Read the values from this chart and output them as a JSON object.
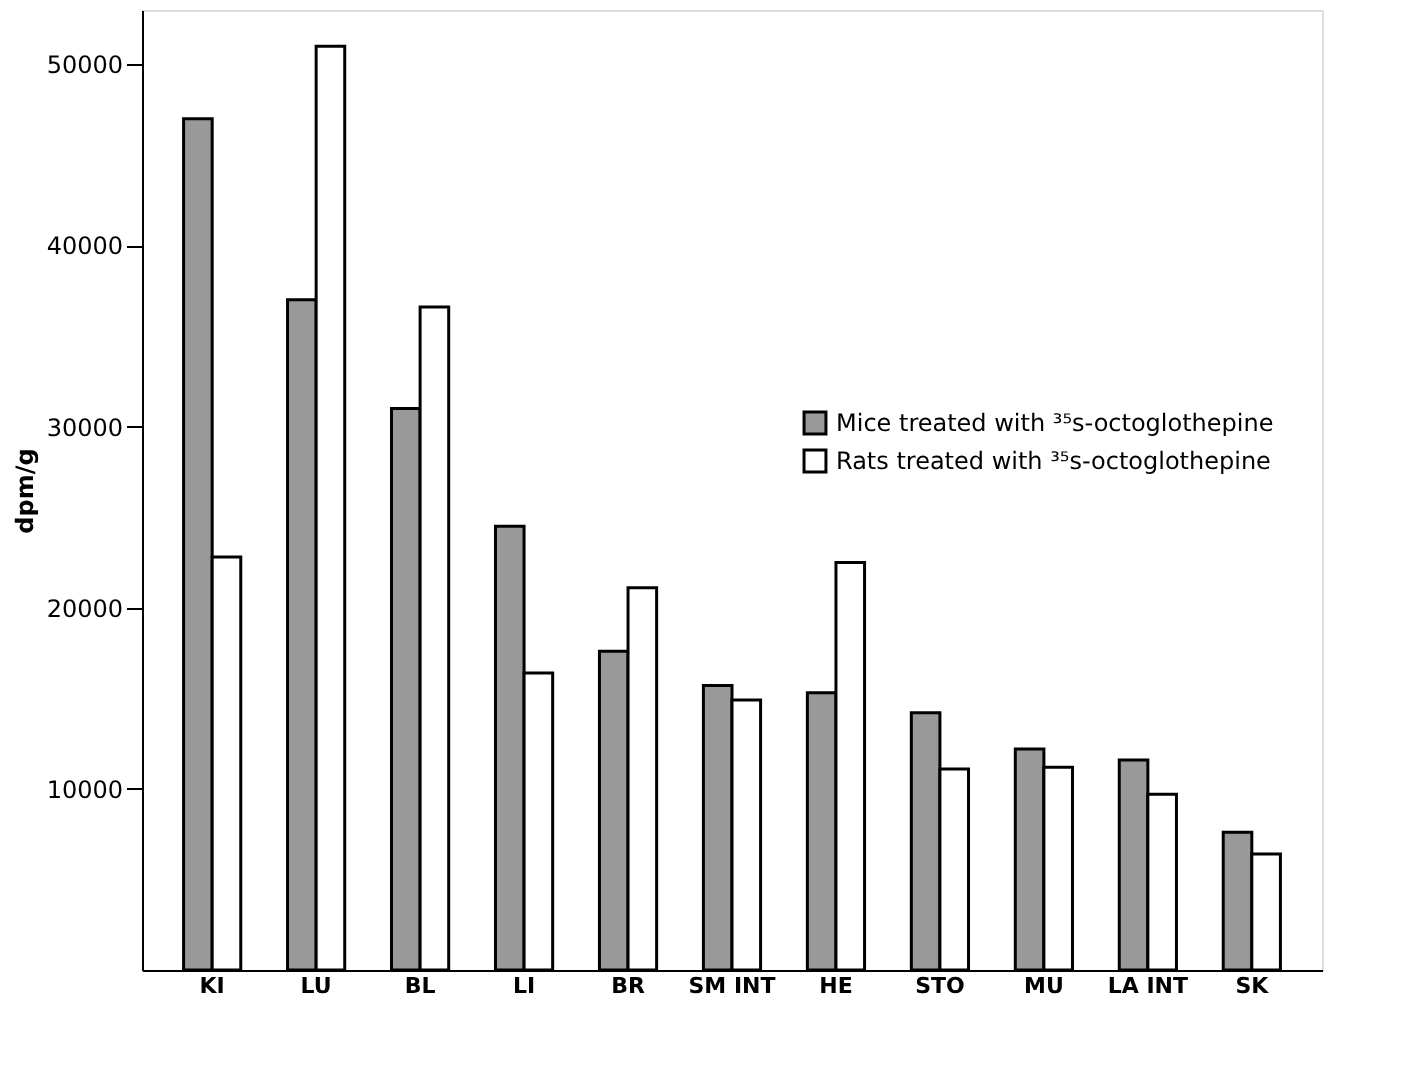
{
  "chart_data": {
    "type": "bar",
    "ylabel": "dpm/g",
    "categories": [
      "KI",
      "LU",
      "BL",
      "LI",
      "BR",
      "SM INT",
      "HE",
      "STO",
      "MU",
      "LA INT",
      "SK"
    ],
    "series": [
      {
        "name": "Mice treated with ³⁵s-octoglothepine",
        "color": "#999999",
        "values": [
          47000,
          37000,
          31000,
          24500,
          17600,
          15700,
          15300,
          14200,
          12200,
          11600,
          7600
        ]
      },
      {
        "name": "Rats treated with ³⁵s-octoglothepine",
        "color": "#ffffff",
        "values": [
          22800,
          51000,
          36600,
          16400,
          21100,
          14900,
          22500,
          11100,
          11200,
          9700,
          6400
        ]
      }
    ],
    "ylim": [
      0,
      53000
    ],
    "yticks": [
      10000,
      20000,
      30000,
      40000,
      50000
    ],
    "grid": false,
    "legend": "right"
  }
}
